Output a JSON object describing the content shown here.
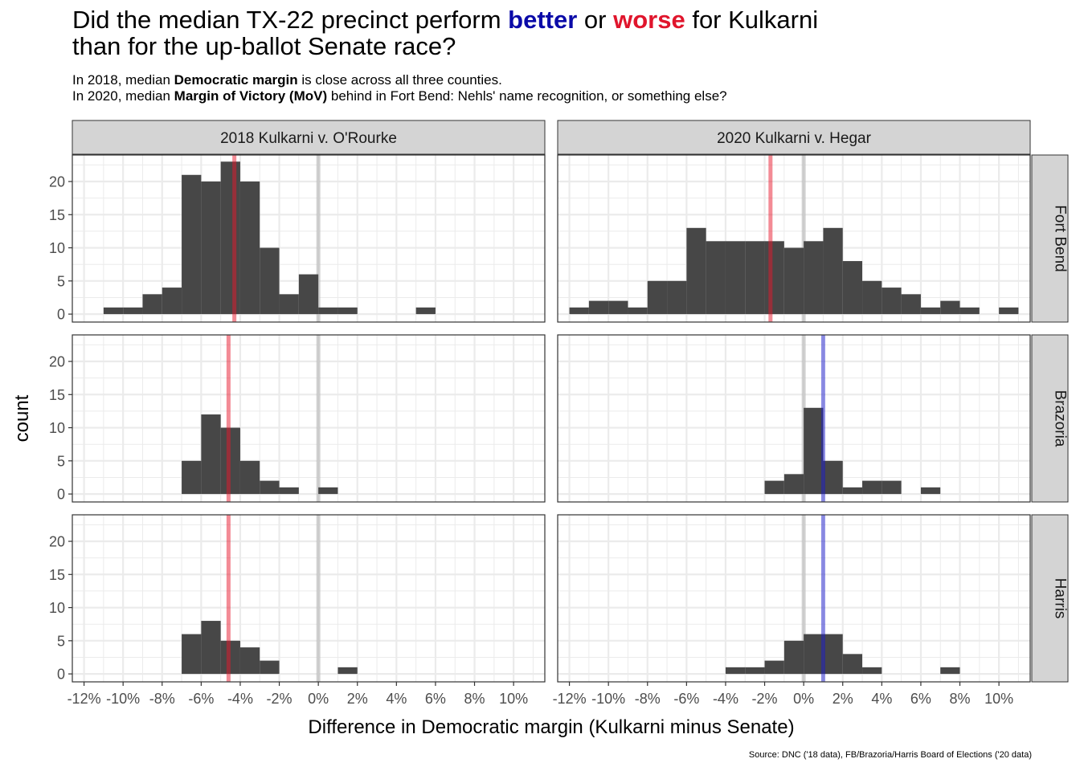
{
  "title": {
    "line1": {
      "pre": "Did the median TX-22 precinct perform ",
      "better": "better",
      "mid": " or ",
      "worse": "worse",
      "post": " for Kulkarni"
    },
    "line2": "than for the up-ballot Senate race?"
  },
  "subtitle": {
    "line1": {
      "pre": "In 2018, median ",
      "bold": "Democratic margin",
      "post": " is close across all three counties."
    },
    "line2": {
      "pre": "In 2020, median ",
      "bold": "Margin of Victory (MoV)",
      "post": " behind in Fort Bend: Nehls' name recognition, or something else?"
    }
  },
  "colors": {
    "bar": "#474747",
    "median_negative": "#e8172c",
    "median_positive": "#1c1ccc",
    "zero_line": "#bbbbbb",
    "strip_fill": "#d4d4d4",
    "grid": "#ebebeb"
  },
  "chart_data": {
    "type": "bar",
    "facet_columns": [
      "2018 Kulkarni v. O'Rourke",
      "2020 Kulkarni v. Hegar"
    ],
    "facet_rows": [
      "Fort Bend",
      "Brazoria",
      "Harris"
    ],
    "xlabel": "Difference in Democratic margin (Kulkarni minus Senate)",
    "ylabel": "count",
    "xlim": [
      -12.6,
      11.6
    ],
    "ylim": [
      -1.2,
      24
    ],
    "x_ticks": [
      -12,
      -10,
      -8,
      -6,
      -4,
      -2,
      0,
      2,
      4,
      6,
      8,
      10
    ],
    "x_tick_labels": [
      "-12%",
      "-10%",
      "-8%",
      "-6%",
      "-4%",
      "-2%",
      "0%",
      "2%",
      "4%",
      "6%",
      "8%",
      "10%"
    ],
    "y_ticks": [
      0,
      5,
      10,
      15,
      20
    ],
    "y_tick_labels": [
      "0",
      "5",
      "10",
      "15",
      "20"
    ],
    "bin_width": 1,
    "zero_line": 0,
    "panels": [
      {
        "column": "2018 Kulkarni v. O'Rourke",
        "row": "Fort Bend",
        "median": -4.3,
        "bins": [
          [
            -10.5,
            1
          ],
          [
            -9.5,
            1
          ],
          [
            -8.5,
            3
          ],
          [
            -7.5,
            4
          ],
          [
            -6.5,
            21
          ],
          [
            -5.5,
            20
          ],
          [
            -4.5,
            23
          ],
          [
            -3.5,
            20
          ],
          [
            -2.5,
            10
          ],
          [
            -1.5,
            3
          ],
          [
            -0.5,
            6
          ],
          [
            0.5,
            1
          ],
          [
            1.5,
            1
          ],
          [
            5.5,
            1
          ]
        ]
      },
      {
        "column": "2020 Kulkarni v. Hegar",
        "row": "Fort Bend",
        "median": -1.7,
        "bins": [
          [
            -11.5,
            1
          ],
          [
            -10.5,
            2
          ],
          [
            -9.5,
            2
          ],
          [
            -8.5,
            1
          ],
          [
            -7.5,
            5
          ],
          [
            -6.5,
            5
          ],
          [
            -5.5,
            13
          ],
          [
            -4.5,
            11
          ],
          [
            -3.5,
            11
          ],
          [
            -2.5,
            11
          ],
          [
            -1.5,
            11
          ],
          [
            -0.5,
            10
          ],
          [
            0.5,
            11
          ],
          [
            1.5,
            13
          ],
          [
            2.5,
            8
          ],
          [
            3.5,
            5
          ],
          [
            4.5,
            4
          ],
          [
            5.5,
            3
          ],
          [
            6.5,
            1
          ],
          [
            7.5,
            2
          ],
          [
            8.5,
            1
          ],
          [
            9.5,
            0
          ],
          [
            10.5,
            1
          ]
        ]
      },
      {
        "column": "2018 Kulkarni v. O'Rourke",
        "row": "Brazoria",
        "median": -4.6,
        "bins": [
          [
            -6.5,
            5
          ],
          [
            -5.5,
            12
          ],
          [
            -4.5,
            10
          ],
          [
            -3.5,
            5
          ],
          [
            -2.5,
            2
          ],
          [
            -1.5,
            1
          ],
          [
            -0.5,
            0
          ],
          [
            0.5,
            1
          ]
        ]
      },
      {
        "column": "2020 Kulkarni v. Hegar",
        "row": "Brazoria",
        "median": 1.0,
        "bins": [
          [
            -1.5,
            2
          ],
          [
            -0.5,
            3
          ],
          [
            0.5,
            13
          ],
          [
            1.5,
            5
          ],
          [
            2.5,
            1
          ],
          [
            3.5,
            2
          ],
          [
            4.5,
            2
          ],
          [
            5.5,
            0
          ],
          [
            6.5,
            1
          ]
        ]
      },
      {
        "column": "2018 Kulkarni v. O'Rourke",
        "row": "Harris",
        "median": -4.6,
        "bins": [
          [
            -6.5,
            6
          ],
          [
            -5.5,
            8
          ],
          [
            -4.5,
            5
          ],
          [
            -3.5,
            4
          ],
          [
            -2.5,
            2
          ],
          [
            -1.5,
            0
          ],
          [
            -0.5,
            0
          ],
          [
            0.5,
            0
          ],
          [
            1.5,
            1
          ]
        ]
      },
      {
        "column": "2020 Kulkarni v. Hegar",
        "row": "Harris",
        "median": 1.0,
        "bins": [
          [
            -3.5,
            1
          ],
          [
            -2.5,
            1
          ],
          [
            -1.5,
            2
          ],
          [
            -0.5,
            5
          ],
          [
            0.5,
            6
          ],
          [
            1.5,
            6
          ],
          [
            2.5,
            3
          ],
          [
            3.5,
            1
          ],
          [
            4.5,
            0
          ],
          [
            5.5,
            0
          ],
          [
            6.5,
            0
          ],
          [
            7.5,
            1
          ]
        ]
      }
    ]
  },
  "caption": "Source: DNC ('18 data), FB/Brazoria/Harris Board of Elections ('20 data)"
}
